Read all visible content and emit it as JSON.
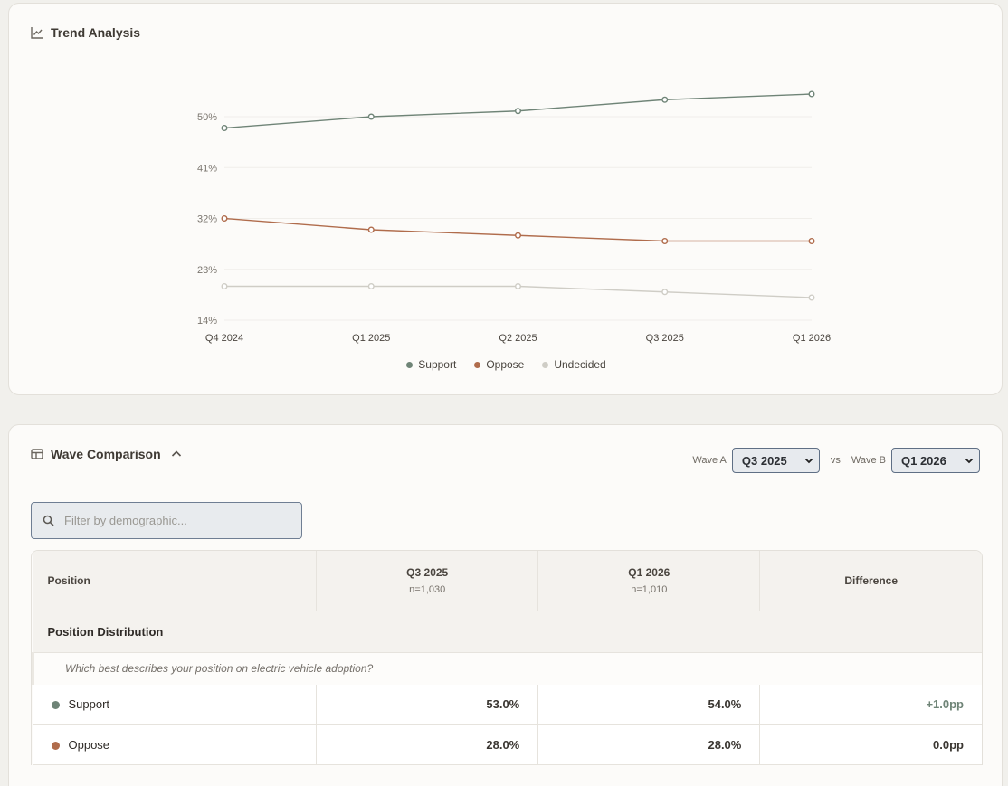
{
  "trend": {
    "title": "Trend Analysis",
    "icon": "line-chart-icon"
  },
  "chart_data": {
    "type": "line",
    "title": "",
    "xlabel": "",
    "ylabel": "",
    "categories": [
      "Q4 2024",
      "Q1 2025",
      "Q2 2025",
      "Q3 2025",
      "Q1 2026"
    ],
    "y_ticks": [
      "50%",
      "41%",
      "32%",
      "23%",
      "14%"
    ],
    "y_tick_values": [
      50,
      41,
      32,
      23,
      14
    ],
    "ylim": [
      14,
      50
    ],
    "grid": true,
    "legend_position": "bottom-center",
    "series": [
      {
        "name": "Support",
        "color": "#6f8477",
        "values": [
          48,
          50,
          51,
          53,
          54
        ]
      },
      {
        "name": "Oppose",
        "color": "#b06c4c",
        "values": [
          32,
          30,
          29,
          28,
          28
        ]
      },
      {
        "name": "Undecided",
        "color": "#cfcdc6",
        "values": [
          20,
          20,
          20,
          19,
          18
        ]
      }
    ]
  },
  "wave": {
    "title": "Wave Comparison",
    "wave_a_label": "Wave A",
    "wave_a_value": "Q3 2025",
    "vs_label": "vs",
    "wave_b_label": "Wave B",
    "wave_b_value": "Q1 2026",
    "search_placeholder": "Filter by demographic...",
    "table": {
      "col_position": "Position",
      "col_a": "Q3 2025",
      "col_a_n": "n=1,030",
      "col_b": "Q1 2026",
      "col_b_n": "n=1,010",
      "col_diff": "Difference",
      "section": "Position Distribution",
      "question": "Which best describes your position on electric vehicle adoption?",
      "rows": [
        {
          "label": "Support",
          "color": "#6f8477",
          "a": "53.0%",
          "b": "54.0%",
          "diff": "+1.0pp",
          "diff_color": "#6f8477"
        },
        {
          "label": "Oppose",
          "color": "#b06c4c",
          "a": "28.0%",
          "b": "28.0%",
          "diff": "0.0pp",
          "diff_color": "#3a3631"
        }
      ]
    }
  }
}
